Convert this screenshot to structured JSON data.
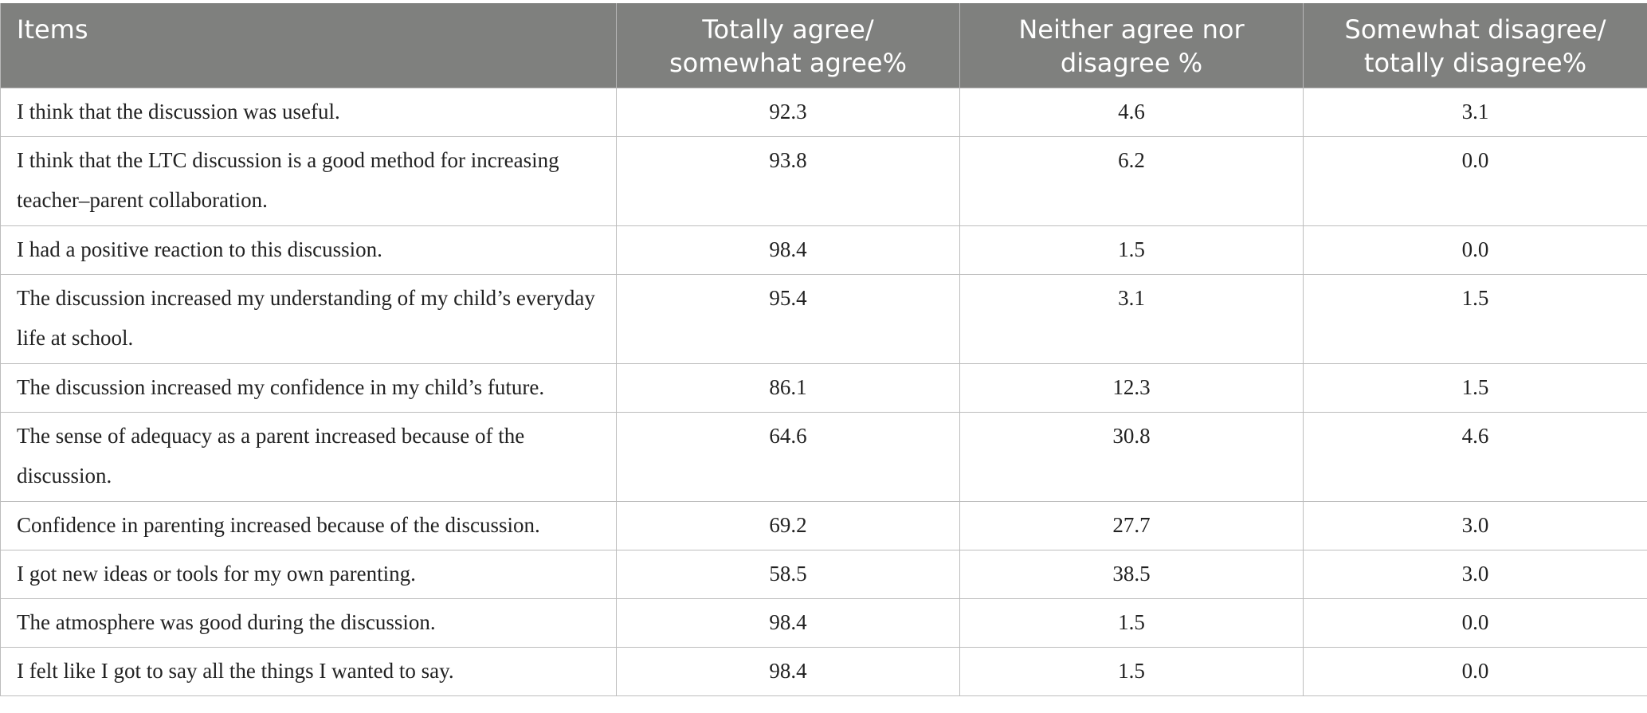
{
  "table": {
    "headers": [
      "Items",
      "Totally agree/\nsomewhat agree%",
      "Neither agree nor\ndisagree %",
      "Somewhat disagree/\ntotally disagree%"
    ],
    "rows": [
      [
        "I think that the discussion was useful.",
        "92.3",
        "4.6",
        "3.1"
      ],
      [
        "I think that the LTC discussion is a good method for increasing teacher–parent collaboration.",
        "93.8",
        "6.2",
        "0.0"
      ],
      [
        "I had a positive reaction to this discussion.",
        "98.4",
        "1.5",
        "0.0"
      ],
      [
        "The discussion increased my understanding of my child’s everyday life at school.",
        "95.4",
        "3.1",
        "1.5"
      ],
      [
        "The discussion increased my confidence in my child’s future.",
        "86.1",
        "12.3",
        "1.5"
      ],
      [
        "The sense of adequacy as a parent increased because of the discussion.",
        "64.6",
        "30.8",
        "4.6"
      ],
      [
        "Confidence in parenting increased because of the discussion.",
        "69.2",
        "27.7",
        "3.0"
      ],
      [
        "I got new ideas or tools for my own parenting.",
        "58.5",
        "38.5",
        "3.0"
      ],
      [
        "The atmosphere was good during the discussion.",
        "98.4",
        "1.5",
        "0.0"
      ],
      [
        "I felt like I got to say all the things I wanted to say.",
        "98.4",
        "1.5",
        "0.0"
      ]
    ]
  }
}
